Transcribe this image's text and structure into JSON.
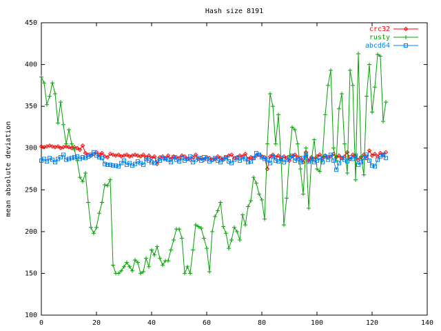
{
  "chart_data": {
    "type": "line",
    "title": "Hash size 8191",
    "y_label": "mean absolute deviation",
    "x": [
      0,
      1,
      2,
      3,
      4,
      5,
      6,
      7,
      8,
      9,
      10,
      11,
      12,
      13,
      14,
      15,
      16,
      17,
      18,
      19,
      20,
      21,
      22,
      23,
      24,
      25,
      26,
      27,
      28,
      29,
      30,
      31,
      32,
      33,
      34,
      35,
      36,
      37,
      38,
      39,
      40,
      41,
      42,
      43,
      44,
      45,
      46,
      47,
      48,
      49,
      50,
      51,
      52,
      53,
      54,
      55,
      56,
      57,
      58,
      59,
      60,
      61,
      62,
      63,
      64,
      65,
      66,
      67,
      68,
      69,
      70,
      71,
      72,
      73,
      74,
      75,
      76,
      77,
      78,
      79,
      80,
      81,
      82,
      83,
      84,
      85,
      86,
      87,
      88,
      89,
      90,
      91,
      92,
      93,
      94,
      95,
      96,
      97,
      98,
      99,
      100,
      101,
      102,
      103,
      104,
      105,
      106,
      107,
      108,
      109,
      110,
      111,
      112,
      113,
      114,
      115,
      116,
      117,
      118,
      119,
      120,
      121,
      122,
      123,
      124,
      125
    ],
    "series": [
      {
        "name": "crc32",
        "color": "#ff0000",
        "marker": "diamond",
        "values": [
          302,
          301,
          302,
          303,
          302,
          301,
          302,
          300,
          301,
          302,
          301,
          300,
          301,
          300,
          298,
          303,
          294,
          292,
          291,
          293,
          295,
          292,
          294,
          290,
          289,
          293,
          292,
          291,
          292,
          290,
          291,
          292,
          290,
          291,
          292,
          291,
          290,
          292,
          289,
          291,
          288,
          290,
          281,
          289,
          290,
          288,
          291,
          287,
          290,
          289,
          288,
          291,
          290,
          287,
          286,
          289,
          292,
          287,
          288,
          286,
          289,
          288,
          286,
          287,
          290,
          288,
          286,
          289,
          291,
          292,
          288,
          289,
          291,
          290,
          293,
          287,
          289,
          288,
          291,
          292,
          290,
          289,
          275,
          290,
          292,
          289,
          291,
          287,
          290,
          288,
          285,
          290,
          292,
          289,
          288,
          283,
          295,
          285,
          289,
          287,
          290,
          292,
          288,
          291,
          289,
          290,
          293,
          289,
          291,
          288,
          290,
          295,
          287,
          292,
          290,
          286,
          289,
          292,
          288,
          297,
          291,
          293,
          290,
          294,
          292,
          295
        ]
      },
      {
        "name": "rusty",
        "color": "#00a000",
        "marker": "plus",
        "values": [
          385,
          378,
          352,
          362,
          378,
          365,
          330,
          355,
          328,
          305,
          322,
          305,
          298,
          285,
          265,
          260,
          270,
          235,
          205,
          198,
          205,
          222,
          235,
          256,
          255,
          262,
          160,
          150,
          150,
          153,
          158,
          163,
          158,
          153,
          166,
          163,
          150,
          152,
          168,
          158,
          178,
          172,
          182,
          168,
          160,
          165,
          165,
          178,
          190,
          203,
          203,
          192,
          150,
          158,
          150,
          178,
          208,
          206,
          204,
          192,
          180,
          152,
          200,
          218,
          225,
          235,
          206,
          198,
          180,
          190,
          205,
          200,
          190,
          220,
          208,
          230,
          237,
          265,
          258,
          245,
          238,
          215,
          305,
          365,
          350,
          305,
          340,
          285,
          208,
          240,
          290,
          325,
          322,
          305,
          275,
          245,
          300,
          228,
          285,
          310,
          275,
          272,
          290,
          340,
          375,
          393,
          300,
          285,
          347,
          365,
          305,
          270,
          393,
          375,
          262,
          413,
          290,
          268,
          362,
          400,
          343,
          373,
          412,
          410,
          332,
          355
        ]
      },
      {
        "name": "abcd64",
        "color": "#0080ff",
        "marker": "square",
        "values": [
          285,
          287,
          284,
          288,
          286,
          283,
          287,
          289,
          292,
          286,
          287,
          288,
          289,
          290,
          287,
          289,
          288,
          290,
          292,
          295,
          291,
          289,
          288,
          281,
          280,
          280,
          279,
          279,
          278,
          282,
          285,
          280,
          282,
          279,
          281,
          284,
          282,
          280,
          287,
          285,
          283,
          282,
          286,
          285,
          288,
          287,
          286,
          283,
          289,
          286,
          284,
          288,
          285,
          287,
          290,
          283,
          286,
          288,
          285,
          289,
          287,
          284,
          286,
          288,
          285,
          283,
          287,
          289,
          284,
          282,
          286,
          288,
          285,
          289,
          287,
          283,
          284,
          288,
          294,
          292,
          289,
          287,
          286,
          282,
          290,
          285,
          284,
          288,
          283,
          286,
          289,
          291,
          285,
          287,
          283,
          288,
          292,
          284,
          287,
          283,
          285,
          288,
          283,
          290,
          286,
          292,
          285,
          274,
          282,
          288,
          286,
          284,
          289,
          287,
          291,
          280,
          283,
          288,
          292,
          285,
          279,
          278,
          286,
          290,
          292,
          288
        ]
      }
    ],
    "xlim": [
      0,
      140
    ],
    "xticks": [
      0,
      20,
      40,
      60,
      80,
      100,
      120,
      140
    ],
    "ylim": [
      100,
      450
    ],
    "yticks": [
      100,
      150,
      200,
      250,
      300,
      350,
      400,
      450
    ],
    "legend": "top-right"
  }
}
